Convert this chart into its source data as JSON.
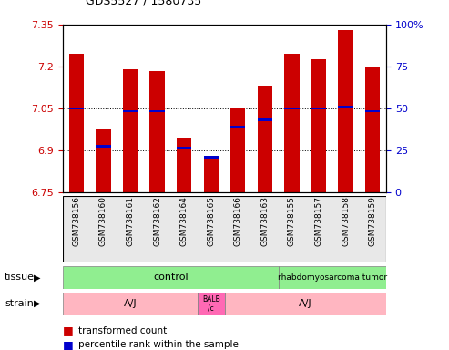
{
  "title": "GDS5527 / 1580735",
  "samples": [
    "GSM738156",
    "GSM738160",
    "GSM738161",
    "GSM738162",
    "GSM738164",
    "GSM738165",
    "GSM738166",
    "GSM738163",
    "GSM738155",
    "GSM738157",
    "GSM738158",
    "GSM738159"
  ],
  "red_values": [
    7.245,
    6.975,
    7.19,
    7.185,
    6.945,
    6.875,
    7.05,
    7.13,
    7.245,
    7.225,
    7.33,
    7.2
  ],
  "blue_values": [
    7.05,
    6.915,
    7.04,
    7.04,
    6.91,
    6.875,
    6.985,
    7.01,
    7.05,
    7.05,
    7.055,
    7.04
  ],
  "ymin": 6.75,
  "ymax": 7.35,
  "yticks": [
    6.75,
    6.9,
    7.05,
    7.2,
    7.35
  ],
  "y2min": 0,
  "y2max": 100,
  "y2ticks": [
    0,
    25,
    50,
    75,
    100
  ],
  "bar_color": "#CC0000",
  "blue_color": "#0000CC",
  "axis_left_color": "#CC0000",
  "axis_right_color": "#0000CC",
  "tissue_green": "#90EE90",
  "strain_pink": "#FFB6C1",
  "strain_pink2": "#FF69B4"
}
